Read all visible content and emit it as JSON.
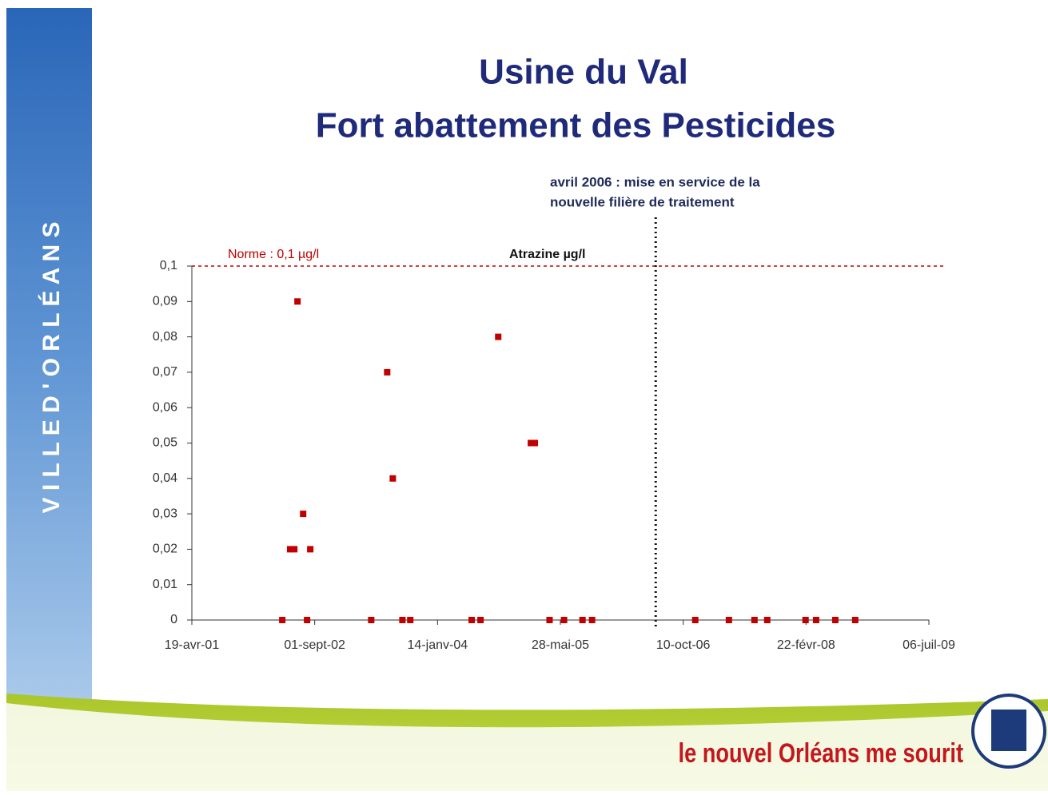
{
  "sidebar": "V I L L E   D ' O R L É A N S",
  "footer": "le nouvel Orléans me sourit",
  "chart_data": {
    "type": "scatter",
    "title": [
      "Usine du Val",
      "Fort abattement des Pesticides"
    ],
    "series": [
      {
        "name": "Atrazine µg/l",
        "color": "#c00000",
        "x": [
          "2002-04-22",
          "2002-05-24",
          "2002-06-10",
          "2002-06-23",
          "2002-07-16",
          "2002-08-01",
          "2002-08-14",
          "2003-04-19",
          "2003-06-23",
          "2003-07-16",
          "2003-08-24",
          "2003-09-25",
          "2004-06-01",
          "2004-07-07",
          "2004-09-17",
          "2005-01-28",
          "2005-02-13",
          "2005-04-14",
          "2005-06-12",
          "2005-08-26",
          "2005-10-04",
          "2006-11-28",
          "2007-04-14",
          "2007-07-27",
          "2007-09-17",
          "2008-02-20",
          "2008-04-03",
          "2008-06-20",
          "2008-09-09"
        ],
        "values": [
          0,
          0.02,
          0.02,
          0.09,
          0.03,
          0,
          0.02,
          0,
          0.07,
          0.04,
          0,
          0,
          0,
          0,
          0.08,
          0.05,
          0.05,
          0,
          0,
          0,
          0,
          0,
          0,
          0,
          0,
          0,
          0,
          0,
          0
        ]
      }
    ],
    "xlim": [
      "2001-04-19",
      "2009-07-06"
    ],
    "xticks": [
      {
        "value": "2001-04-19",
        "label": "19-avr-01"
      },
      {
        "value": "2002-09-01",
        "label": "01-sept-02"
      },
      {
        "value": "2004-01-14",
        "label": "14-janv-04"
      },
      {
        "value": "2005-05-28",
        "label": "28-mai-05"
      },
      {
        "value": "2006-10-10",
        "label": "10-oct-06"
      },
      {
        "value": "2008-02-22",
        "label": "22-févr-08"
      },
      {
        "value": "2009-07-06",
        "label": "06-juil-09"
      }
    ],
    "ylim": [
      0,
      0.1
    ],
    "yticks": [
      0,
      {
        "value": 0.01,
        "label": "0,01"
      },
      {
        "value": 0.02,
        "label": "0,02"
      },
      {
        "value": 0.03,
        "label": "0,03"
      },
      {
        "value": 0.04,
        "label": "0,04"
      },
      {
        "value": 0.05,
        "label": "0,05"
      },
      {
        "value": 0.06,
        "label": "0,06"
      },
      {
        "value": 0.07,
        "label": "0,07"
      },
      {
        "value": 0.08,
        "label": "0,08"
      },
      {
        "value": 0.09,
        "label": "0,09"
      },
      {
        "value": 0.1,
        "label": "0,1"
      }
    ],
    "norm": {
      "value": 0.1,
      "label": "Norme : 0,1 µg/l",
      "color": "#c00000"
    },
    "event": {
      "x": "2006-06-20",
      "label": [
        "avril 2006 : mise en service de la",
        "nouvelle filière de traitement"
      ]
    }
  }
}
